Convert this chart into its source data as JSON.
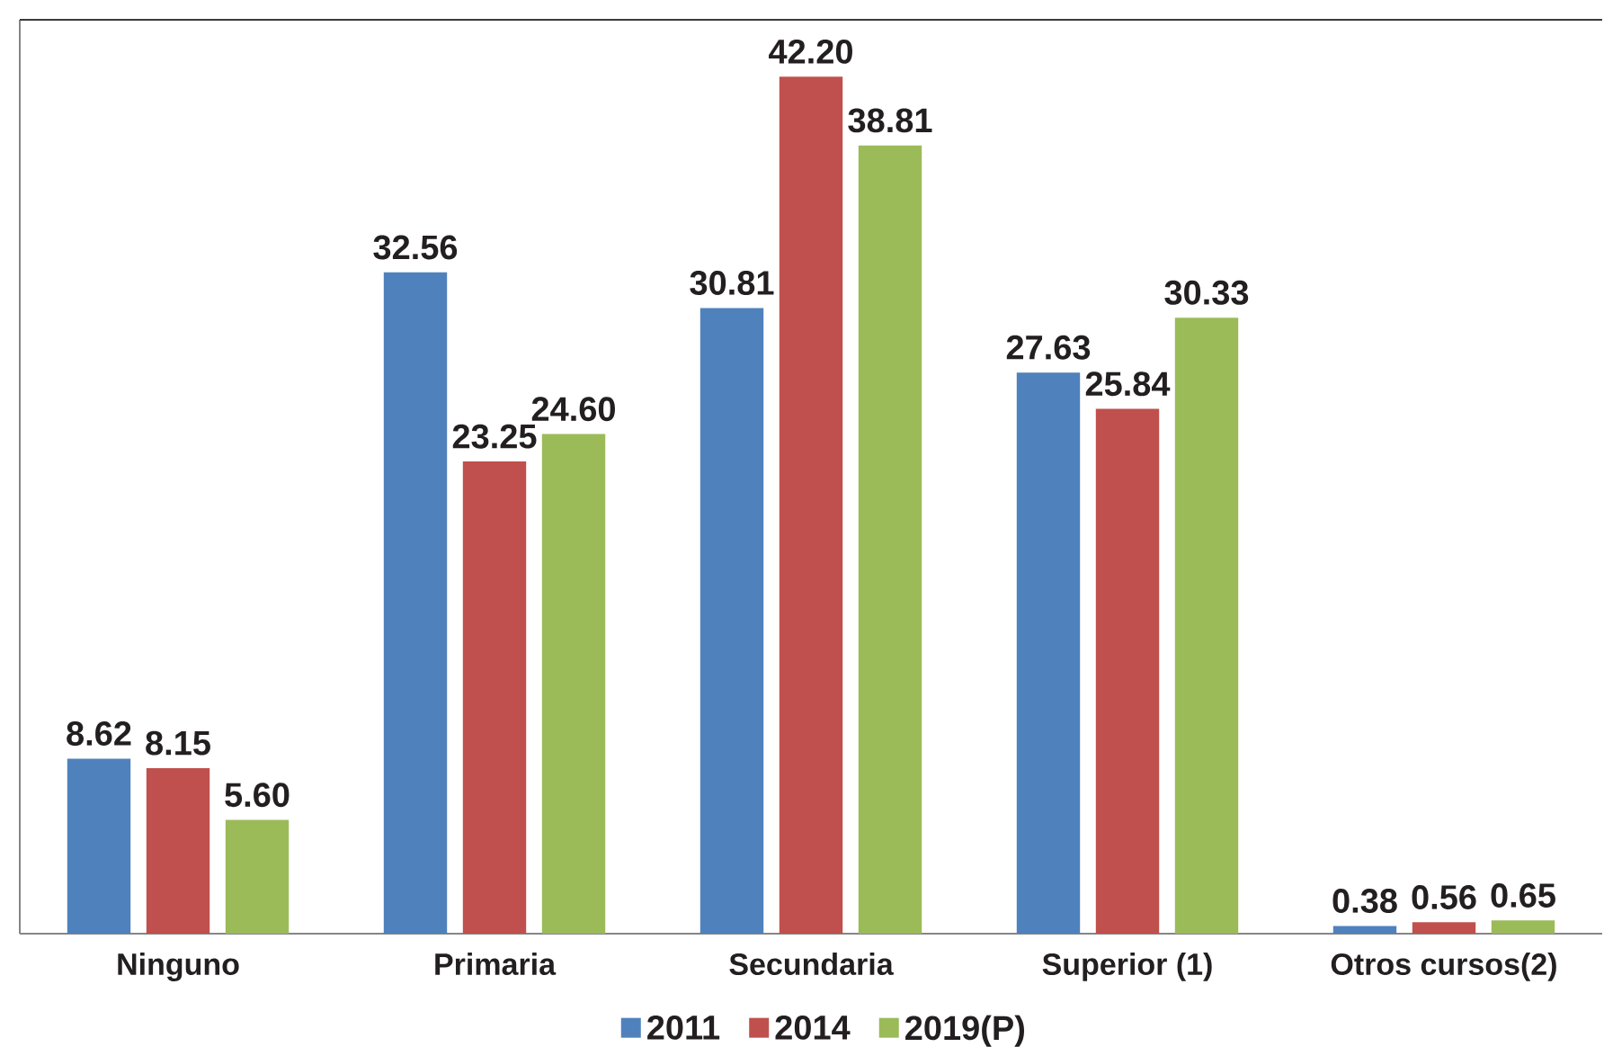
{
  "chart_data": {
    "type": "bar",
    "categories": [
      "Ninguno",
      "Primaria",
      "Secundaria",
      "Superior (1)",
      "Otros cursos(2)"
    ],
    "series": [
      {
        "name": "2011",
        "color": "#4f81bd",
        "values": [
          8.62,
          32.56,
          30.81,
          27.63,
          0.38
        ],
        "value_labels": [
          "8.62",
          "32.56",
          "30.81",
          "27.63",
          "0.38"
        ]
      },
      {
        "name": "2014",
        "color": "#c0504d",
        "values": [
          8.15,
          23.25,
          42.2,
          25.84,
          0.56
        ],
        "value_labels": [
          "8.15",
          "23.25",
          "42.20",
          "25.84",
          "0.56"
        ]
      },
      {
        "name": "2019(P)",
        "color": "#9bbb59",
        "values": [
          5.6,
          24.6,
          38.81,
          30.33,
          0.65
        ],
        "value_labels": [
          "5.60",
          "24.60",
          "38.81",
          "30.33",
          "0.65"
        ]
      }
    ],
    "ylim": [
      0,
      45
    ],
    "legend": "bottom",
    "tick_labels": "x"
  }
}
